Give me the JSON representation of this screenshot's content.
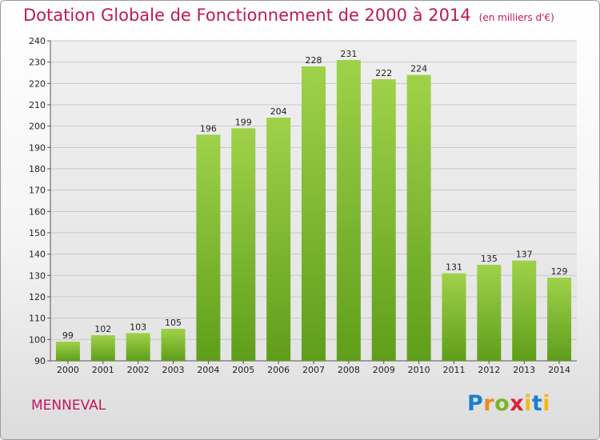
{
  "chart_data": {
    "type": "bar",
    "title": "Dotation Globale de Fonctionnement de 2000 à 2014",
    "unit": "(en milliers d'€)",
    "categories": [
      "2000",
      "2001",
      "2002",
      "2003",
      "2004",
      "2005",
      "2006",
      "2007",
      "2008",
      "2009",
      "2010",
      "2011",
      "2012",
      "2013",
      "2014"
    ],
    "values": [
      99,
      102,
      103,
      105,
      196,
      199,
      204,
      228,
      231,
      222,
      224,
      131,
      135,
      137,
      129
    ],
    "ylim": [
      90,
      240
    ],
    "yticks": [
      90,
      100,
      110,
      120,
      130,
      140,
      150,
      160,
      170,
      180,
      190,
      200,
      210,
      220,
      230,
      240
    ],
    "grid": true,
    "bar_color": "#86c43a",
    "title_color": "#c0185a"
  },
  "footer": {
    "commune": "MENNEVAL",
    "logo": "Proxiti"
  }
}
